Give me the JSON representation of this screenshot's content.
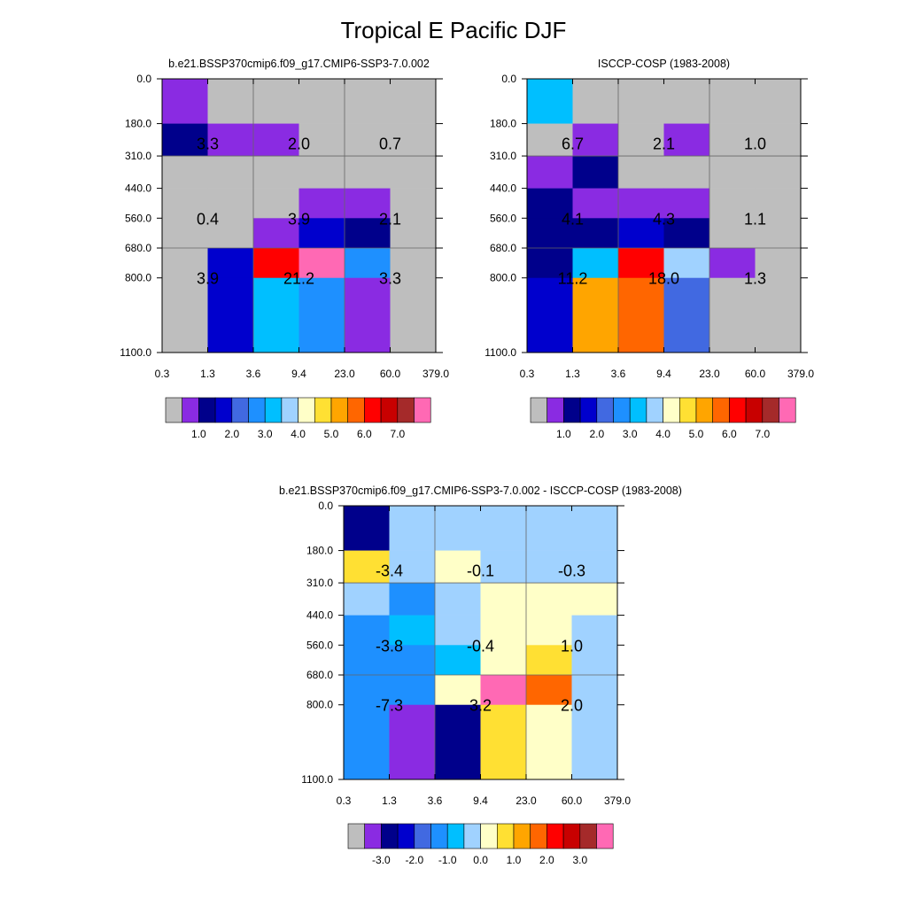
{
  "title": "Tropical E Pacific DJF",
  "palette": {
    "c0": "#bebebe",
    "c1": "#8a2be2",
    "c2": "#00008b",
    "c3": "#0000cd",
    "c4": "#4169e1",
    "c5": "#1e90ff",
    "c6": "#00bfff",
    "c7": "#a0d2ff",
    "c8": "#ffffc8",
    "c9": "#ffe033",
    "c10": "#ffa500",
    "c11": "#ff6600",
    "c12": "#ff0000",
    "c13": "#c80000",
    "c14": "#a52a2a",
    "c15": "#ff69b4"
  },
  "chart_data": [
    {
      "type": "heatmap",
      "title": "b.e21.BSSP370cmip6.f09_g17.CMIP6-SSP3-7.0.002",
      "x_ticks": [
        "0.3",
        "1.3",
        "3.6",
        "9.4",
        "23.0",
        "60.0",
        "379.0"
      ],
      "y_ticks": [
        "0.0",
        "180.0",
        "310.0",
        "440.0",
        "560.0",
        "680.0",
        "800.0",
        "1100.0"
      ],
      "cell_colors": [
        [
          "c1",
          "c0",
          "c0",
          "c0",
          "c0",
          "c0"
        ],
        [
          "c2",
          "c1",
          "c1",
          "c0",
          "c0",
          "c0"
        ],
        [
          "c0",
          "c0",
          "c0",
          "c0",
          "c0",
          "c0"
        ],
        [
          "c0",
          "c0",
          "c0",
          "c1",
          "c1",
          "c0"
        ],
        [
          "c0",
          "c0",
          "c1",
          "c3",
          "c2",
          "c0"
        ],
        [
          "c0",
          "c3",
          "c12",
          "c15",
          "c5",
          "c0"
        ],
        [
          "c0",
          "c3",
          "c6",
          "c5",
          "c1",
          "c0"
        ]
      ],
      "block_labels": [
        [
          "3.3",
          "2.0",
          "0.7"
        ],
        [
          "0.4",
          "3.9",
          "2.1"
        ],
        [
          "3.9",
          "21.2",
          "3.3"
        ]
      ],
      "colorbar": {
        "colors": [
          "c0",
          "c1",
          "c2",
          "c3",
          "c4",
          "c5",
          "c6",
          "c7",
          "c8",
          "c9",
          "c10",
          "c11",
          "c12",
          "c13",
          "c14",
          "c15"
        ],
        "labels": [
          "1.0",
          "2.0",
          "3.0",
          "4.0",
          "5.0",
          "6.0",
          "7.0"
        ]
      }
    },
    {
      "type": "heatmap",
      "title": "ISCCP-COSP (1983-2008)",
      "x_ticks": [
        "0.3",
        "1.3",
        "3.6",
        "9.4",
        "23.0",
        "60.0",
        "379.0"
      ],
      "y_ticks": [
        "0.0",
        "180.0",
        "310.0",
        "440.0",
        "560.0",
        "680.0",
        "800.0",
        "1100.0"
      ],
      "cell_colors": [
        [
          "c6",
          "c0",
          "c0",
          "c0",
          "c0",
          "c0"
        ],
        [
          "c0",
          "c1",
          "c0",
          "c1",
          "c0",
          "c0"
        ],
        [
          "c1",
          "c2",
          "c0",
          "c0",
          "c0",
          "c0"
        ],
        [
          "c2",
          "c1",
          "c1",
          "c1",
          "c0",
          "c0"
        ],
        [
          "c2",
          "c2",
          "c3",
          "c2",
          "c0",
          "c0"
        ],
        [
          "c2",
          "c6",
          "c12",
          "c7",
          "c1",
          "c0"
        ],
        [
          "c3",
          "c10",
          "c11",
          "c4",
          "c0",
          "c0"
        ]
      ],
      "block_labels": [
        [
          "6.7",
          "2.1",
          "1.0"
        ],
        [
          "4.1",
          "4.3",
          "1.1"
        ],
        [
          "11.2",
          "18.0",
          "1.3"
        ]
      ],
      "colorbar": {
        "colors": [
          "c0",
          "c1",
          "c2",
          "c3",
          "c4",
          "c5",
          "c6",
          "c7",
          "c8",
          "c9",
          "c10",
          "c11",
          "c12",
          "c13",
          "c14",
          "c15"
        ],
        "labels": [
          "1.0",
          "2.0",
          "3.0",
          "4.0",
          "5.0",
          "6.0",
          "7.0"
        ]
      }
    },
    {
      "type": "heatmap",
      "title": "b.e21.BSSP370cmip6.f09_g17.CMIP6-SSP3-7.0.002 - ISCCP-COSP (1983-2008)",
      "x_ticks": [
        "0.3",
        "1.3",
        "3.6",
        "9.4",
        "23.0",
        "60.0",
        "379.0"
      ],
      "y_ticks": [
        "0.0",
        "180.0",
        "310.0",
        "440.0",
        "560.0",
        "680.0",
        "800.0",
        "1100.0"
      ],
      "cell_colors": [
        [
          "c2",
          "c7",
          "c7",
          "c7",
          "c7",
          "c7"
        ],
        [
          "c9",
          "c7",
          "c8",
          "c7",
          "c7",
          "c7"
        ],
        [
          "c7",
          "c5",
          "c7",
          "c8",
          "c8",
          "c8"
        ],
        [
          "c5",
          "c6",
          "c7",
          "c8",
          "c8",
          "c7"
        ],
        [
          "c5",
          "c5",
          "c6",
          "c8",
          "c9",
          "c7"
        ],
        [
          "c5",
          "c5",
          "c8",
          "c15",
          "c11",
          "c7"
        ],
        [
          "c5",
          "c1",
          "c2",
          "c9",
          "c8",
          "c7"
        ]
      ],
      "block_labels": [
        [
          "-3.4",
          "-0.1",
          "-0.3"
        ],
        [
          "-3.8",
          "-0.4",
          "1.0"
        ],
        [
          "-7.3",
          "3.2",
          "2.0"
        ]
      ],
      "colorbar": {
        "colors": [
          "c0",
          "c1",
          "c2",
          "c3",
          "c4",
          "c5",
          "c6",
          "c7",
          "c8",
          "c9",
          "c10",
          "c11",
          "c12",
          "c13",
          "c14",
          "c15"
        ],
        "labels": [
          "-3.0",
          "-2.0",
          "-1.0",
          "0.0",
          "1.0",
          "2.0",
          "3.0"
        ]
      }
    }
  ]
}
